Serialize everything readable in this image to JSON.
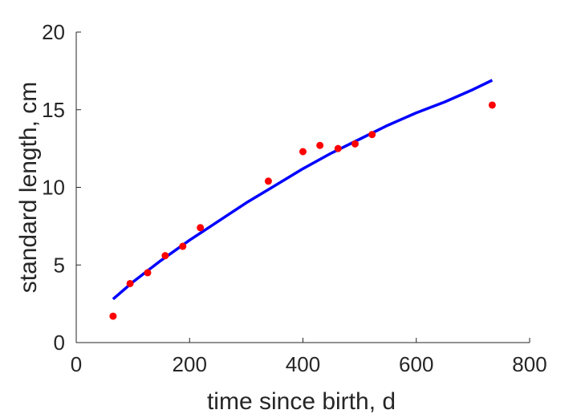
{
  "chart_data": {
    "type": "scatter",
    "title": "",
    "xlabel": "time since birth, d",
    "ylabel": "standard length, cm",
    "xlim": [
      0,
      800
    ],
    "ylim": [
      0,
      20
    ],
    "xticks": [
      0,
      200,
      400,
      600,
      800
    ],
    "yticks": [
      0,
      5,
      10,
      15,
      20
    ],
    "xtick_labels": [
      "0",
      "200",
      "400",
      "600",
      "800"
    ],
    "ytick_labels": [
      "0",
      "5",
      "10",
      "15",
      "20"
    ],
    "grid": false,
    "box": "left-bottom axes only",
    "series": [
      {
        "kind": "points",
        "color": "#ff0000",
        "x": [
          65,
          95,
          126,
          157,
          188,
          219,
          339,
          400,
          430,
          462,
          492,
          522,
          734
        ],
        "y": [
          1.7,
          3.8,
          4.5,
          5.6,
          6.2,
          7.4,
          10.4,
          12.3,
          12.7,
          12.5,
          12.8,
          13.4,
          15.3
        ]
      },
      {
        "kind": "line",
        "color": "#0000ff",
        "x": [
          65,
          100,
          150,
          200,
          250,
          300,
          350,
          400,
          450,
          500,
          550,
          600,
          650,
          700,
          734
        ],
        "y": [
          2.8,
          3.9,
          5.3,
          6.6,
          7.8,
          9.0,
          10.1,
          11.2,
          12.2,
          13.1,
          14.0,
          14.8,
          15.5,
          16.3,
          16.9
        ]
      }
    ]
  }
}
